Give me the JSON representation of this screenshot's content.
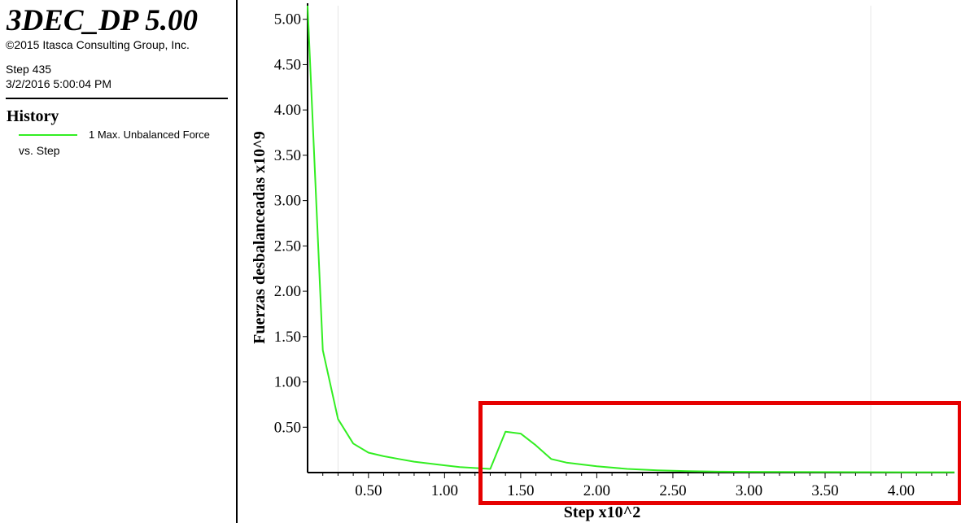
{
  "header": {
    "app_title": "3DEC_DP 5.00",
    "copyright": "©2015 Itasca Consulting Group, Inc.",
    "step": "Step 435",
    "timestamp": "3/2/2016 5:00:04 PM"
  },
  "legend": {
    "heading": "History",
    "entry": "1 Max. Unbalanced Force",
    "entry_sub": "vs. Step",
    "line_color": "#33ee22"
  },
  "colors": {
    "series": "#33ee22",
    "highlight": "#e60000",
    "axis": "#000000",
    "gridline": "#e6e6e6"
  },
  "chart_data": {
    "type": "line",
    "xlabel": "Step x10^2",
    "ylabel": "Fuerzas desbalanceadas x10^9",
    "xlim": [
      0.1,
      4.35
    ],
    "ylim": [
      0.0,
      5.15
    ],
    "x_ticks": [
      "0.50",
      "1.00",
      "1.50",
      "2.00",
      "2.50",
      "3.00",
      "3.50",
      "4.00"
    ],
    "y_ticks": [
      "0.50",
      "1.00",
      "1.50",
      "2.00",
      "2.50",
      "3.00",
      "3.50",
      "4.00",
      "4.50",
      "5.00"
    ],
    "grid": "vertical gridlines at 0.30 and 3.80",
    "series": [
      {
        "x": [
          0.1,
          0.2,
          0.3,
          0.4,
          0.5,
          0.6,
          0.7,
          0.8,
          0.9,
          1.0,
          1.1,
          1.2,
          1.3,
          1.4,
          1.5,
          1.6,
          1.7,
          1.8,
          1.9,
          2.0,
          2.2,
          2.4,
          2.6,
          2.8,
          3.0,
          3.5,
          4.0,
          4.35
        ],
        "y": [
          5.15,
          1.35,
          0.59,
          0.32,
          0.22,
          0.18,
          0.15,
          0.12,
          0.1,
          0.08,
          0.06,
          0.05,
          0.04,
          0.45,
          0.43,
          0.3,
          0.15,
          0.11,
          0.09,
          0.07,
          0.04,
          0.025,
          0.015,
          0.01,
          0.008,
          0.005,
          0.004,
          0.004
        ]
      }
    ],
    "annotation": "red rectangle highlighting the region from step 1.15 to 4.35"
  }
}
